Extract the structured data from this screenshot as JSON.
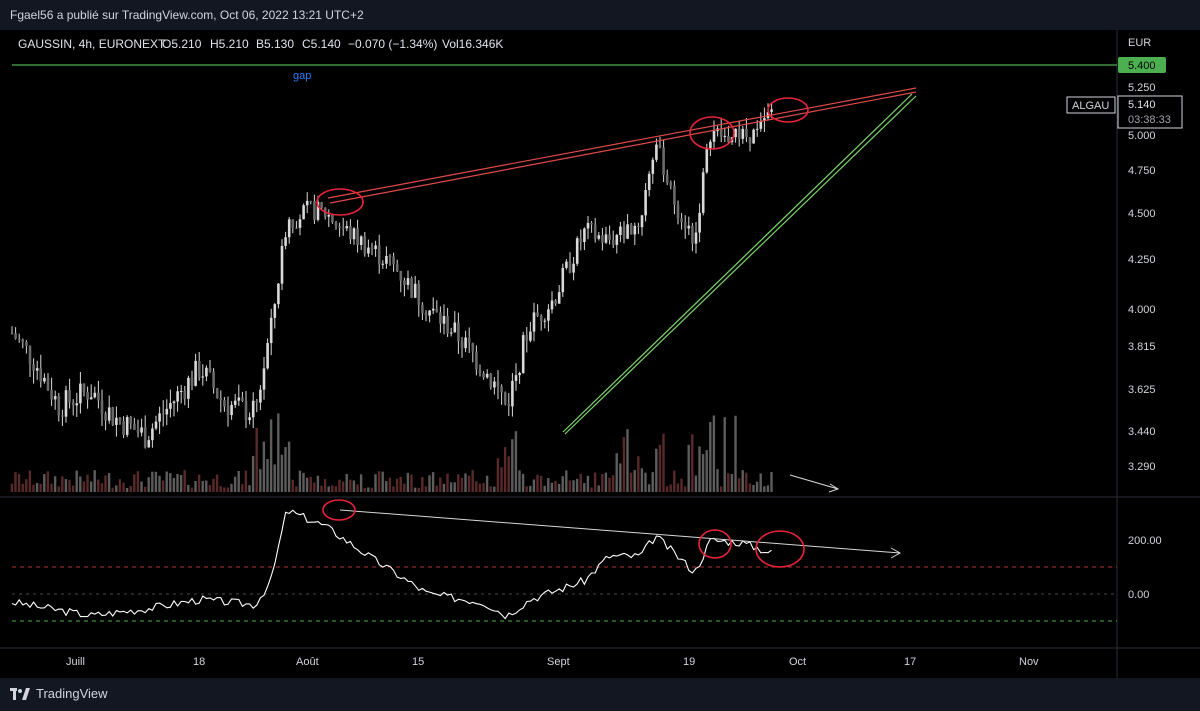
{
  "header": {
    "publish_line": "Fgael56 a publié sur TradingView.com, Oct 06, 2022 13:21 UTC+2"
  },
  "footer": {
    "brand": "TradingView"
  },
  "colors": {
    "background": "#000000",
    "frame": "#131722",
    "candle": "#d9d9d9",
    "volume_up": "#5d5d5d",
    "volume_down": "#5a2a2a",
    "resistance_line": "#e04a4a",
    "support_line": "#7cd66b",
    "level_line": "#4caf50",
    "level_badge": "#4caf50",
    "annotation_circle": "#e8243a",
    "indicator_line": "#ffffff",
    "dash_red": "#b43232",
    "dash_green": "#4caf50",
    "dash_gray": "#4a4a4a",
    "gap_text": "#2e7cf6"
  },
  "chart_data": {
    "type": "candlestick",
    "symbol_line": {
      "symbol": "GAUSSIN, 4h, EURONEXT",
      "open": "O5.210",
      "high": "H5.210",
      "low": "B5.130",
      "close": "C5.140",
      "change": "−0.070 (−1.34%)",
      "volume": "Vol16.346K"
    },
    "currency": "EUR",
    "price_axis_ticks": [
      "5.250",
      "5.000",
      "4.750",
      "4.500",
      "4.250",
      "4.000",
      "3.815",
      "3.625",
      "3.440",
      "3.290"
    ],
    "price_axis_labels_y_values": [
      5.25,
      5.0,
      4.75,
      4.5,
      4.25,
      4.0,
      3.815,
      3.625,
      3.44,
      3.29
    ],
    "level_badge": "5.400",
    "level_value": 5.4,
    "current_price": "5.140",
    "countdown": "03:38:33",
    "ticker_tag": "ALGAU",
    "annotation_gap": "gap",
    "indicator_ticks": [
      "200.00",
      "0.00"
    ],
    "indicator_reference_levels": [
      100,
      0,
      -100
    ],
    "x_axis_labels": [
      "Juill",
      "18",
      "Août",
      "15",
      "Sept",
      "19",
      "Oct",
      "17",
      "Nov"
    ],
    "price_points": [
      [
        "Jul 1",
        3.88
      ],
      [
        "Jul 4",
        3.74
      ],
      [
        "Jul 7",
        3.55
      ],
      [
        "Jul 11",
        3.62
      ],
      [
        "Jul 14",
        3.5
      ],
      [
        "Jul 18",
        3.42
      ],
      [
        "Jul 21",
        3.55
      ],
      [
        "Jul 25",
        3.72
      ],
      [
        "Jul 28",
        3.56
      ],
      [
        "Aug 1",
        3.52
      ],
      [
        "Aug 3",
        3.9
      ],
      [
        "Aug 5",
        4.45
      ],
      [
        "Aug 8",
        4.52
      ],
      [
        "Aug 10",
        4.5
      ],
      [
        "Aug 12",
        4.42
      ],
      [
        "Aug 16",
        4.3
      ],
      [
        "Aug 19",
        4.2
      ],
      [
        "Aug 23",
        4.0
      ],
      [
        "Aug 26",
        3.9
      ],
      [
        "Aug 30",
        3.72
      ],
      [
        "Sep 1",
        3.62
      ],
      [
        "Sep 2",
        3.55
      ],
      [
        "Sep 5",
        3.92
      ],
      [
        "Sep 8",
        4.05
      ],
      [
        "Sep 12",
        4.4
      ],
      [
        "Sep 15",
        4.35
      ],
      [
        "Sep 19",
        4.45
      ],
      [
        "Sep 21",
        4.95
      ],
      [
        "Sep 23",
        4.6
      ],
      [
        "Sep 26",
        4.35
      ],
      [
        "Sep 28",
        5.02
      ],
      [
        "Sep 30",
        4.98
      ],
      [
        "Oct 4",
        5.0
      ],
      [
        "Oct 6",
        5.14
      ]
    ],
    "volume_profile": "bars at bottom of price pane, spikes around Aug 3 and Sep 28",
    "indicator_points": [
      [
        "Jul 1",
        -30
      ],
      [
        "Jul 11",
        -80
      ],
      [
        "Jul 18",
        -55
      ],
      [
        "Jul 25",
        -20
      ],
      [
        "Aug 1",
        -40
      ],
      [
        "Aug 3",
        50
      ],
      [
        "Aug 5",
        310
      ],
      [
        "Aug 10",
        250
      ],
      [
        "Aug 16",
        130
      ],
      [
        "Aug 23",
        0
      ],
      [
        "Aug 30",
        -30
      ],
      [
        "Sep 2",
        -80
      ],
      [
        "Sep 5",
        -20
      ],
      [
        "Sep 12",
        50
      ],
      [
        "Sep 15",
        140
      ],
      [
        "Sep 19",
        140
      ],
      [
        "Sep 21",
        215
      ],
      [
        "Sep 26",
        80
      ],
      [
        "Sep 28",
        200
      ],
      [
        "Oct 2",
        190
      ],
      [
        "Oct 6",
        150
      ]
    ],
    "trendlines": [
      "resistance (double red line, Aug 5 → mid Oct)",
      "rising support (double green line, Sep 1 → mid Oct)",
      "indicator divergence line (white, Aug 5 → mid Oct)",
      "volume divergence arrow (white)"
    ]
  }
}
